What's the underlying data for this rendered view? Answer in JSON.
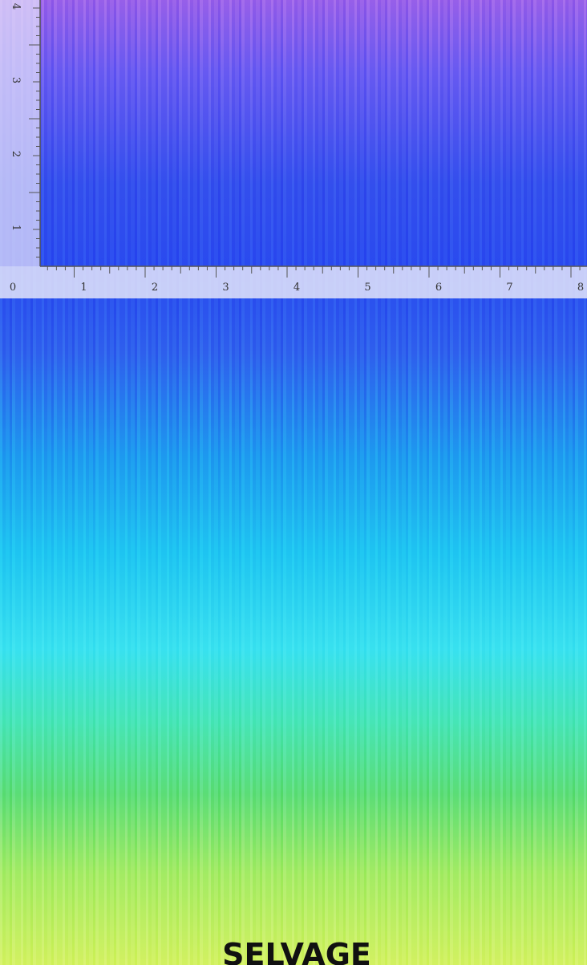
{
  "ruler": {
    "horizontal_labels": [
      "0",
      "1",
      "2",
      "3",
      "4",
      "5",
      "6",
      "7",
      "8"
    ],
    "vertical_labels": [
      "1",
      "2",
      "3",
      "4"
    ]
  },
  "footer": {
    "label": "SELVAGE"
  }
}
